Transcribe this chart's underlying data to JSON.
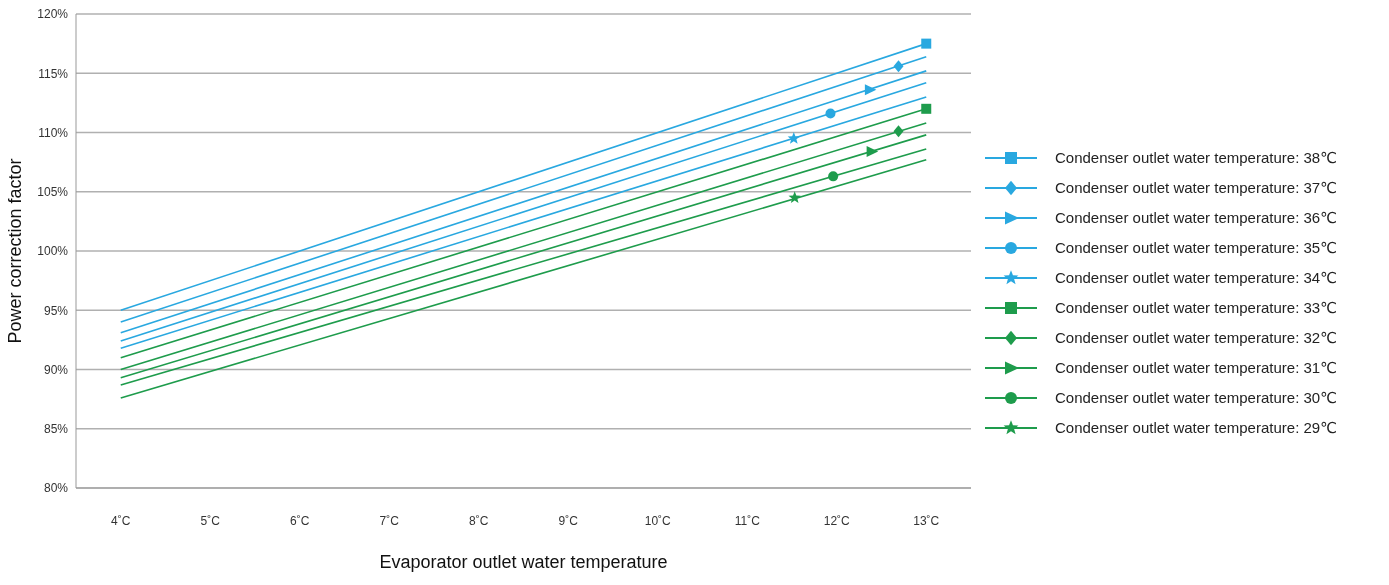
{
  "chart_data": {
    "type": "line",
    "xlabel": "Evaporator outlet water temperature",
    "ylabel": "Power correction factor",
    "xlim": [
      3.5,
      13.5
    ],
    "xticks": [
      {
        "value": 4,
        "label": "4˚C"
      },
      {
        "value": 5,
        "label": "5˚C"
      },
      {
        "value": 6,
        "label": "6˚C"
      },
      {
        "value": 7,
        "label": "7˚C"
      },
      {
        "value": 8,
        "label": "8˚C"
      },
      {
        "value": 9,
        "label": "9˚C"
      },
      {
        "value": 10,
        "label": "10˚C"
      },
      {
        "value": 11,
        "label": "11˚C"
      },
      {
        "value": 12,
        "label": "12˚C"
      },
      {
        "value": 13,
        "label": "13˚C"
      }
    ],
    "ylim": [
      80,
      120
    ],
    "yticks": [
      {
        "value": 80,
        "label": "80%"
      },
      {
        "value": 85,
        "label": "85%"
      },
      {
        "value": 90,
        "label": "90%"
      },
      {
        "value": 95,
        "label": "95%"
      },
      {
        "value": 100,
        "label": "100%"
      },
      {
        "value": 105,
        "label": "105%"
      },
      {
        "value": 110,
        "label": "110%"
      },
      {
        "value": 115,
        "label": "115%"
      },
      {
        "value": 120,
        "label": "120%"
      }
    ],
    "grid": "y",
    "legend": "right",
    "line_style": "solid",
    "series": [
      {
        "name": "Condenser outlet water temperature: 38℃",
        "color": "#29a8e0",
        "x": [
          4,
          13
        ],
        "values": [
          95.0,
          117.5
        ]
      },
      {
        "name": "Condenser outlet water temperature: 37℃",
        "color": "#29a8e0",
        "x": [
          4,
          13
        ],
        "values": [
          94.0,
          116.4
        ]
      },
      {
        "name": "Condenser outlet water temperature: 36℃",
        "color": "#29a8e0",
        "x": [
          4,
          13
        ],
        "values": [
          93.1,
          115.2
        ]
      },
      {
        "name": "Condenser outlet water temperature: 35℃",
        "color": "#29a8e0",
        "x": [
          4,
          13
        ],
        "values": [
          92.4,
          114.2
        ]
      },
      {
        "name": "Condenser outlet water temperature: 34℃",
        "color": "#29a8e0",
        "x": [
          4,
          13
        ],
        "values": [
          91.8,
          113.0
        ]
      },
      {
        "name": "Condenser outlet water temperature: 33℃",
        "color": "#1e9c4c",
        "x": [
          4,
          13
        ],
        "values": [
          91.0,
          112.0
        ]
      },
      {
        "name": "Condenser outlet water temperature: 32℃",
        "color": "#1e9c4c",
        "x": [
          4,
          13
        ],
        "values": [
          90.0,
          110.8
        ]
      },
      {
        "name": "Condenser outlet water temperature: 31℃",
        "color": "#1e9c4c",
        "x": [
          4,
          13
        ],
        "values": [
          89.3,
          109.8
        ]
      },
      {
        "name": "Condenser outlet water temperature: 30℃",
        "color": "#1e9c4c",
        "x": [
          4,
          13
        ],
        "values": [
          88.7,
          108.6
        ]
      },
      {
        "name": "Condenser outlet water temperature: 29℃",
        "color": "#1e9c4c",
        "x": [
          4,
          13
        ],
        "values": [
          87.6,
          107.7
        ]
      },
      {
        "type": "scatter",
        "color": "#29a8e0",
        "marker": "square",
        "x": [
          13
        ],
        "values": [
          117.5
        ]
      },
      {
        "type": "scatter",
        "color": "#29a8e0",
        "marker": "diamond",
        "x": [
          12.69
        ],
        "values": [
          115.6
        ]
      },
      {
        "type": "scatter",
        "color": "#29a8e0",
        "marker": "triangle",
        "x": [
          12.37
        ],
        "values": [
          113.6
        ]
      },
      {
        "type": "scatter",
        "color": "#29a8e0",
        "marker": "circle",
        "x": [
          11.93
        ],
        "values": [
          111.6
        ]
      },
      {
        "type": "scatter",
        "color": "#29a8e0",
        "marker": "star",
        "x": [
          11.52
        ],
        "values": [
          109.5
        ]
      },
      {
        "type": "scatter",
        "color": "#1e9c4c",
        "marker": "square",
        "x": [
          13
        ],
        "values": [
          112.0
        ]
      },
      {
        "type": "scatter",
        "color": "#1e9c4c",
        "marker": "diamond",
        "x": [
          12.69
        ],
        "values": [
          110.1
        ]
      },
      {
        "type": "scatter",
        "color": "#1e9c4c",
        "marker": "triangle",
        "x": [
          12.39
        ],
        "values": [
          108.4
        ]
      },
      {
        "type": "scatter",
        "color": "#1e9c4c",
        "marker": "circle",
        "x": [
          11.96
        ],
        "values": [
          106.3
        ]
      },
      {
        "type": "scatter",
        "color": "#1e9c4c",
        "marker": "star",
        "x": [
          11.53
        ],
        "values": [
          104.5
        ]
      }
    ]
  }
}
